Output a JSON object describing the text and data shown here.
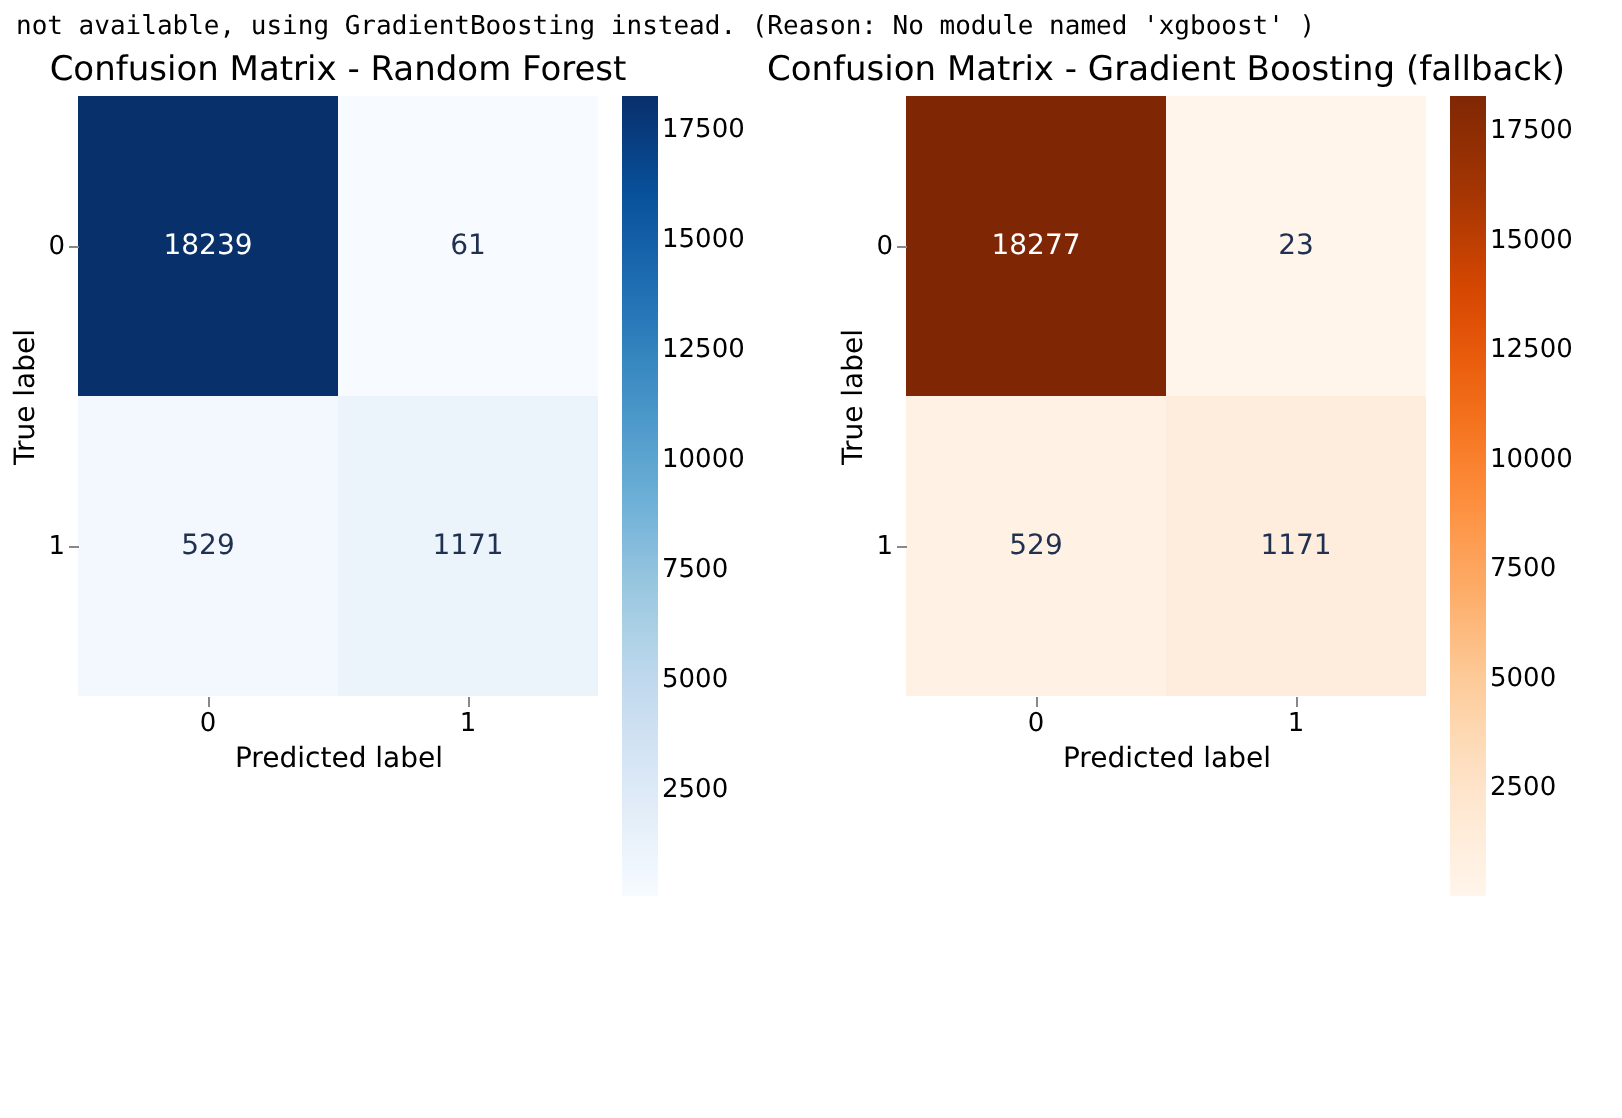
{
  "chart_data": [
    {
      "type": "heatmap",
      "title": "Confusion Matrix - Random Forest",
      "xlabel": "Predicted label",
      "ylabel": "True label",
      "categories": [
        "0",
        "1"
      ],
      "y_categories": [
        "0",
        "1"
      ],
      "cells": [
        [
          18239,
          61
        ],
        [
          529,
          1171
        ]
      ],
      "data_labels": true,
      "clim": [
        61,
        18239
      ],
      "cticks": [
        2500,
        5000,
        7500,
        10000,
        12500,
        15000,
        17500
      ],
      "annotations": [
        "not available, using GradientBoosting instead. (Reason: No module named 'xgboost' )"
      ]
    },
    {
      "type": "heatmap",
      "title": "Confusion Matrix - Gradient Boosting (fallback)",
      "xlabel": "Predicted label",
      "ylabel": "True label",
      "categories": [
        "0",
        "1"
      ],
      "y_categories": [
        "0",
        "1"
      ],
      "cells": [
        [
          18277,
          23
        ],
        [
          529,
          1171
        ]
      ],
      "data_labels": true,
      "clim": [
        23,
        18277
      ],
      "cticks": [
        2500,
        5000,
        7500,
        10000,
        12500,
        15000,
        17500
      ]
    }
  ]
}
